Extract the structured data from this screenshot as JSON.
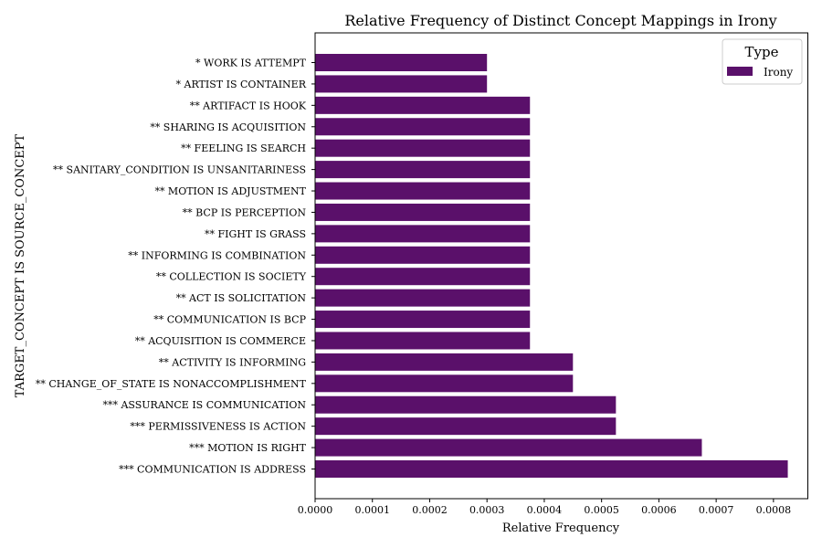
{
  "chart_data": {
    "type": "bar",
    "orientation": "horizontal",
    "title": "Relative Frequency of Distinct Concept Mappings in Irony",
    "xlabel": "Relative Frequency",
    "ylabel": "TARGET_CONCEPT IS SOURCE_CONCEPT",
    "xlim": [
      0,
      0.00086
    ],
    "x_ticks": [
      "0.0000",
      "0.0001",
      "0.0002",
      "0.0003",
      "0.0004",
      "0.0005",
      "0.0006",
      "0.0007",
      "0.0008"
    ],
    "x_tick_values": [
      0,
      0.0001,
      0.0002,
      0.0003,
      0.0004,
      0.0005,
      0.0006,
      0.0007,
      0.0008
    ],
    "grid": false,
    "legend": {
      "title": "Type",
      "placement": "top-right",
      "entries": [
        "Irony"
      ]
    },
    "series": [
      {
        "name": "Irony",
        "color": "#5a106a"
      }
    ],
    "categories": [
      "* WORK IS ATTEMPT",
      "* ARTIST IS CONTAINER",
      "** ARTIFACT IS HOOK",
      "** SHARING IS ACQUISITION",
      "** FEELING IS SEARCH",
      "** SANITARY_CONDITION IS UNSANITARINESS",
      "** MOTION IS ADJUSTMENT",
      "** BCP IS PERCEPTION",
      "** FIGHT IS GRASS",
      "** INFORMING IS COMBINATION",
      "** COLLECTION IS SOCIETY",
      "** ACT IS SOLICITATION",
      "** COMMUNICATION IS BCP",
      "** ACQUISITION IS COMMERCE",
      "** ACTIVITY IS INFORMING",
      "** CHANGE_OF_STATE IS NONACCOMPLISHMENT",
      "*** ASSURANCE IS COMMUNICATION",
      "*** PERMISSIVENESS IS ACTION",
      "*** MOTION IS RIGHT",
      "*** COMMUNICATION IS ADDRESS"
    ],
    "values": [
      0.0003,
      0.0003,
      0.000375,
      0.000375,
      0.000375,
      0.000375,
      0.000375,
      0.000375,
      0.000375,
      0.000375,
      0.000375,
      0.000375,
      0.000375,
      0.000375,
      0.00045,
      0.00045,
      0.000525,
      0.000525,
      0.000675,
      0.000825
    ]
  }
}
